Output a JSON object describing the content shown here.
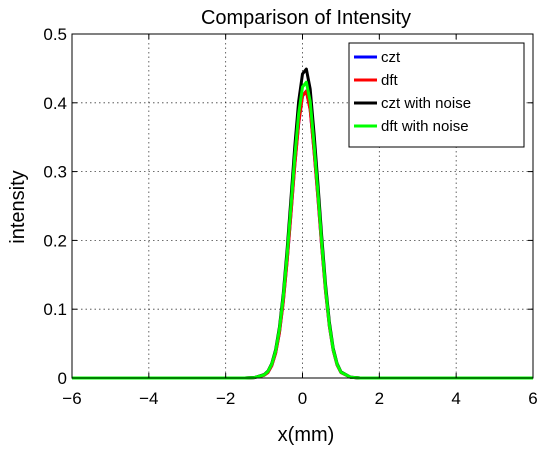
{
  "chart_data": {
    "type": "line",
    "title": "Comparison of Intensity",
    "xlabel": "x(mm)",
    "ylabel": "intensity",
    "xlim": [
      -6,
      6
    ],
    "ylim": [
      0,
      0.5
    ],
    "xticks": [
      -6,
      -4,
      -2,
      0,
      2,
      4,
      6
    ],
    "xtick_labels": [
      "−6",
      "−4",
      "−2",
      "0",
      "2",
      "4",
      "6"
    ],
    "yticks": [
      0,
      0.1,
      0.2,
      0.3,
      0.4,
      0.5
    ],
    "ytick_labels": [
      "0",
      "0.1",
      "0.2",
      "0.3",
      "0.4",
      "0.5"
    ],
    "grid": true,
    "legend_position": "top-right",
    "x": [
      -6,
      -5,
      -4,
      -3,
      -2,
      -1.5,
      -1.25,
      -1,
      -0.9,
      -0.8,
      -0.7,
      -0.6,
      -0.5,
      -0.4,
      -0.3,
      -0.2,
      -0.1,
      0,
      0.1,
      0.2,
      0.3,
      0.4,
      0.5,
      0.6,
      0.7,
      0.8,
      0.9,
      1,
      1.25,
      1.5,
      2,
      3,
      4,
      5,
      6
    ],
    "series": [
      {
        "name": "czt",
        "color": "#0000ff",
        "values": [
          0,
          0,
          0,
          0,
          0,
          0,
          0.0006,
          0.004,
          0.008,
          0.018,
          0.036,
          0.066,
          0.111,
          0.17,
          0.239,
          0.31,
          0.37,
          0.41,
          0.417,
          0.39,
          0.33,
          0.263,
          0.191,
          0.126,
          0.075,
          0.04,
          0.019,
          0.008,
          0.001,
          0,
          0,
          0,
          0,
          0,
          0
        ]
      },
      {
        "name": "dft",
        "color": "#ff0000",
        "values": [
          0,
          0,
          0,
          0,
          0,
          0,
          0.0006,
          0.004,
          0.008,
          0.018,
          0.036,
          0.066,
          0.111,
          0.17,
          0.239,
          0.31,
          0.37,
          0.41,
          0.417,
          0.39,
          0.33,
          0.263,
          0.191,
          0.126,
          0.075,
          0.04,
          0.019,
          0.008,
          0.001,
          0,
          0,
          0,
          0,
          0,
          0
        ]
      },
      {
        "name": "czt with noise",
        "color": "#000000",
        "values": [
          0,
          0,
          0,
          0,
          0,
          0,
          0.0007,
          0.005,
          0.01,
          0.021,
          0.041,
          0.074,
          0.123,
          0.187,
          0.261,
          0.337,
          0.402,
          0.442,
          0.449,
          0.42,
          0.356,
          0.283,
          0.206,
          0.136,
          0.081,
          0.043,
          0.021,
          0.009,
          0.0012,
          0,
          0,
          0,
          0,
          0,
          0
        ]
      },
      {
        "name": "dft with noise",
        "color": "#00ff00",
        "values": [
          0,
          0,
          0,
          0,
          0,
          0,
          0.0006,
          0.0045,
          0.0095,
          0.02,
          0.039,
          0.071,
          0.118,
          0.179,
          0.25,
          0.322,
          0.384,
          0.423,
          0.43,
          0.402,
          0.34,
          0.271,
          0.197,
          0.13,
          0.077,
          0.041,
          0.02,
          0.0085,
          0.0011,
          0,
          0,
          0,
          0,
          0,
          0
        ]
      }
    ]
  }
}
